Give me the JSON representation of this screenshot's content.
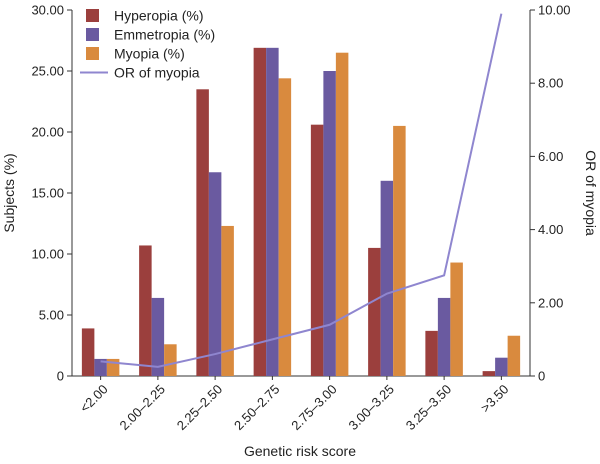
{
  "chart_data": {
    "type": "bar",
    "xlabel": "Genetic risk score",
    "ylabel": "Subjects (%)",
    "y2label": "OR of myopia",
    "categories": [
      "<2.00",
      "2.00–2.25",
      "2.25–2.50",
      "2.50–2.75",
      "2.75–3.00",
      "3.00–3.25",
      "3.25–3.50",
      ">3.50"
    ],
    "ylim": [
      0,
      30
    ],
    "yticks": [
      "0",
      "5.00",
      "10.00",
      "15.00",
      "20.00",
      "25.00",
      "30.00"
    ],
    "y2lim": [
      0,
      10
    ],
    "y2ticks": [
      "0",
      "2.00",
      "4.00",
      "6.00",
      "8.00",
      "10.00"
    ],
    "grid": false,
    "legend_position": "top-left",
    "series": [
      {
        "name": "Hyperopia (%)",
        "type": "bar",
        "color": "#9b3f3d",
        "values": [
          3.9,
          10.7,
          23.5,
          26.9,
          20.6,
          10.5,
          3.7,
          0.4
        ]
      },
      {
        "name": "Emmetropia (%)",
        "type": "bar",
        "color": "#6a5aa0",
        "values": [
          1.4,
          6.4,
          16.7,
          26.9,
          25.0,
          16.0,
          6.4,
          1.5
        ]
      },
      {
        "name": "Myopia (%)",
        "type": "bar",
        "color": "#d98a3e",
        "values": [
          1.4,
          2.6,
          12.3,
          24.4,
          26.5,
          20.5,
          9.3,
          3.3
        ]
      },
      {
        "name": "OR of myopia",
        "type": "line",
        "axis": "right",
        "color": "#8f86cf",
        "values": [
          0.4,
          0.25,
          0.6,
          1.0,
          1.4,
          2.25,
          2.75,
          9.9
        ]
      }
    ]
  }
}
